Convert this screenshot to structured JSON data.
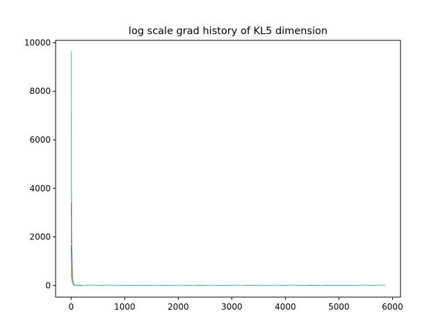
{
  "chart_data": {
    "type": "line",
    "title": "log scale grad history of KL5 dimension",
    "xlabel": "",
    "ylabel": "",
    "xlim": [
      -290,
      6150
    ],
    "ylim": [
      -480,
      10100
    ],
    "x_ticks": [
      0,
      1000,
      2000,
      3000,
      4000,
      5000,
      6000
    ],
    "x_tick_labels": [
      "0",
      "1000",
      "2000",
      "3000",
      "4000",
      "5000",
      "6000"
    ],
    "y_ticks": [
      0,
      2000,
      4000,
      6000,
      8000,
      10000
    ],
    "y_tick_labels": [
      "0",
      "2000",
      "4000",
      "6000",
      "8000",
      "10000"
    ],
    "grid": false,
    "legend": "none",
    "x_max": 5860,
    "series": [
      {
        "color": "#1f77b4",
        "peak": 1650,
        "decay": 14
      },
      {
        "color": "#ff7f0e",
        "peak": 6250,
        "decay": 10
      },
      {
        "color": "#2ca02c",
        "peak": 900,
        "decay": 16
      },
      {
        "color": "#d62728",
        "peak": 2950,
        "decay": 12
      },
      {
        "color": "#9467bd",
        "peak": 1200,
        "decay": 15
      },
      {
        "color": "#8c564b",
        "peak": 700,
        "decay": 18
      },
      {
        "color": "#e377c2",
        "peak": 1000,
        "decay": 13
      },
      {
        "color": "#7f7f7f",
        "peak": 500,
        "decay": 20
      },
      {
        "color": "#bcbd22",
        "peak": 800,
        "decay": 14
      },
      {
        "color": "#17becf",
        "peak": 9650,
        "decay": 8
      }
    ]
  }
}
